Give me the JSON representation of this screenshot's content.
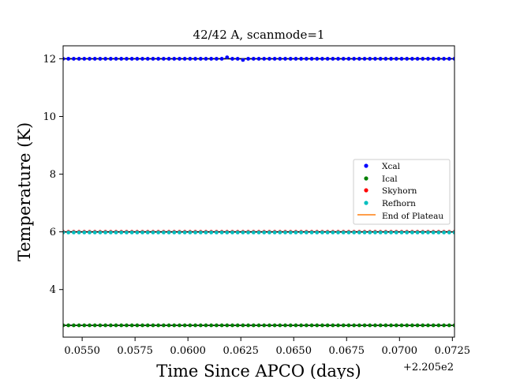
{
  "chart_data": {
    "type": "scatter",
    "title": "42/42 A, scanmode=1",
    "xlabel": "Time Since APCO (days)",
    "ylabel": "Temperature (K)",
    "x_offset_label": "+2.205e2",
    "xlim": [
      0.0541,
      0.0726
    ],
    "ylim": [
      2.35,
      12.45
    ],
    "x_ticks": [
      0.055,
      0.0575,
      0.06,
      0.0625,
      0.065,
      0.0675,
      0.07,
      0.0725
    ],
    "x_tick_labels": [
      "0.0550",
      "0.0575",
      "0.0600",
      "0.0625",
      "0.0650",
      "0.0675",
      "0.0700",
      "0.0725"
    ],
    "y_ticks": [
      4,
      6,
      8,
      10,
      12
    ],
    "y_tick_labels": [
      "4",
      "6",
      "8",
      "10",
      "12"
    ],
    "grid": false,
    "legend_position": "center-right",
    "x": [
      0.0541,
      0.05435,
      0.0546,
      0.05485,
      0.0551,
      0.05535,
      0.0556,
      0.05585,
      0.0561,
      0.05635,
      0.0566,
      0.05685,
      0.0571,
      0.05735,
      0.0576,
      0.05785,
      0.0581,
      0.05835,
      0.0586,
      0.05885,
      0.0591,
      0.05935,
      0.0596,
      0.05985,
      0.0601,
      0.06035,
      0.0606,
      0.06085,
      0.0611,
      0.06135,
      0.0616,
      0.06185,
      0.0621,
      0.06235,
      0.0626,
      0.06285,
      0.0631,
      0.06335,
      0.0636,
      0.06385,
      0.0641,
      0.06435,
      0.0646,
      0.06485,
      0.0651,
      0.06535,
      0.0656,
      0.06585,
      0.0661,
      0.06635,
      0.0666,
      0.06685,
      0.0671,
      0.06735,
      0.0676,
      0.06785,
      0.0681,
      0.06835,
      0.0686,
      0.06885,
      0.0691,
      0.06935,
      0.0696,
      0.06985,
      0.0701,
      0.07035,
      0.0706,
      0.07085,
      0.0711,
      0.07135,
      0.0716,
      0.07185,
      0.0721,
      0.07235,
      0.0726
    ],
    "series": [
      {
        "name": "Xcal",
        "color": "#0000ff",
        "level": 12.0,
        "jitter": [
          [
            31,
            0.05
          ],
          [
            34,
            -0.04
          ]
        ]
      },
      {
        "name": "Ical",
        "color": "#008000",
        "level": 2.76
      },
      {
        "name": "Skyhorn",
        "color": "#ff0000",
        "level": 6.0
      },
      {
        "name": "Refhorn",
        "color": "#00bfbf",
        "level": 5.98
      }
    ],
    "end_of_plateau": {
      "name": "End of Plateau",
      "color": "#ff7f0e"
    },
    "reference_lines": [
      12.0,
      6.0,
      2.76
    ]
  }
}
